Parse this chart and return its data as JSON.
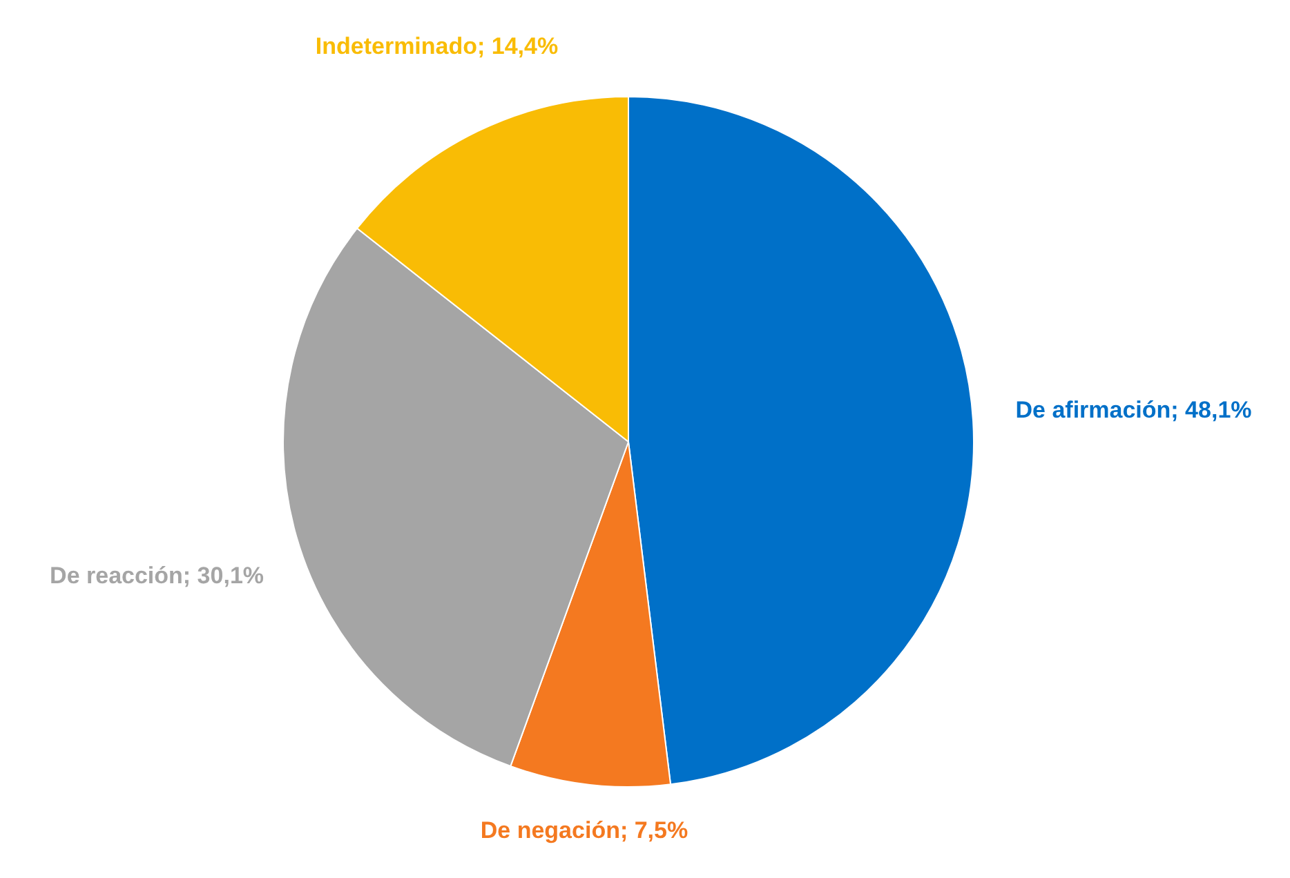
{
  "chart_data": {
    "type": "pie",
    "categories": [
      "De afirmación",
      "De negación",
      "De reacción",
      "Indeterminado"
    ],
    "values": [
      48.1,
      7.5,
      30.1,
      14.4
    ],
    "colors": [
      "#0070c8",
      "#f47920",
      "#a5a5a5",
      "#f9bc05"
    ],
    "value_labels": [
      "48,1%",
      "7,5%",
      "30,1%",
      "14,4%"
    ]
  }
}
